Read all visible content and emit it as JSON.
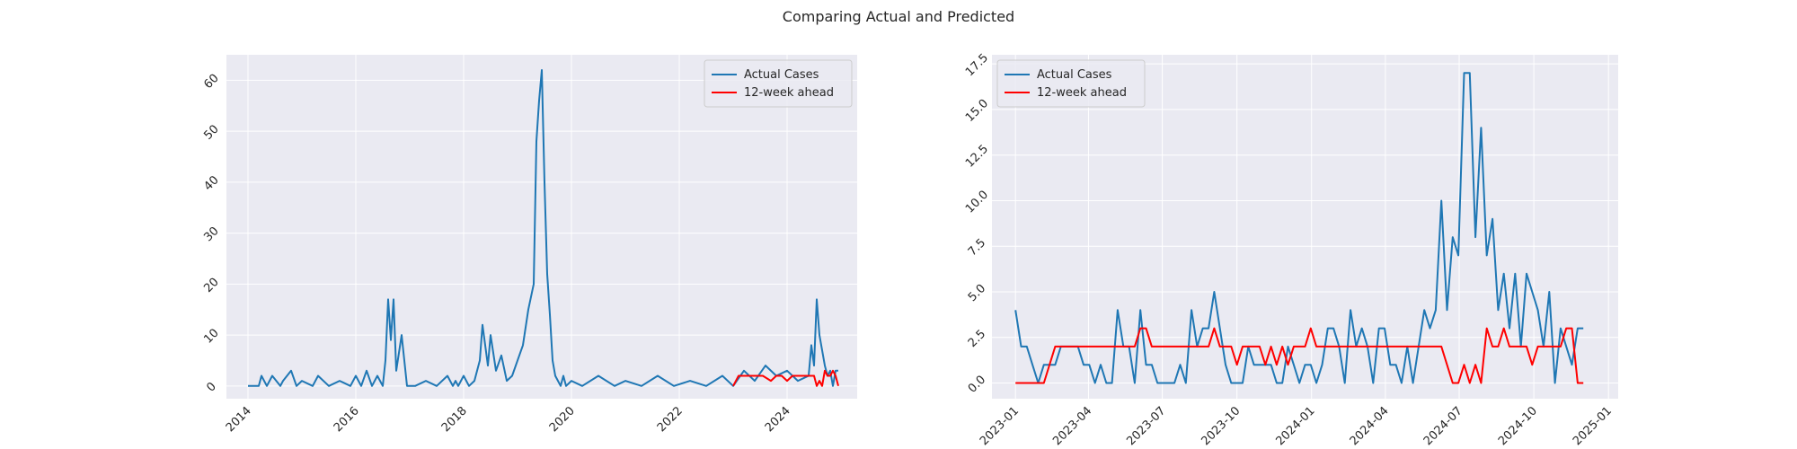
{
  "figure": {
    "suptitle": "Comparing Actual and Predicted"
  },
  "colors": {
    "background": "#eaeaf2",
    "grid": "#ffffff",
    "actual": "#1f77b4",
    "predicted": "#ff0000",
    "text": "#262626"
  },
  "chart_data": [
    {
      "type": "line",
      "legend": {
        "position": "upper-right",
        "entries": [
          "Actual Cases",
          "12-week ahead"
        ]
      },
      "grid": true,
      "xlim": [
        2013.6,
        2025.3
      ],
      "ylim": [
        -2.5,
        65
      ],
      "x_ticks": [
        2014,
        2016,
        2018,
        2020,
        2022,
        2024
      ],
      "x_tick_labels": [
        "2014",
        "2016",
        "2018",
        "2020",
        "2022",
        "2024"
      ],
      "y_ticks": [
        0,
        10,
        20,
        30,
        40,
        50,
        60
      ],
      "y_tick_labels": [
        "0",
        "10",
        "20",
        "30",
        "40",
        "50",
        "60"
      ],
      "series": [
        {
          "name": "Actual Cases",
          "color": "#1f77b4",
          "x": [
            2014.0,
            2014.2,
            2014.25,
            2014.35,
            2014.45,
            2014.6,
            2014.65,
            2014.8,
            2014.9,
            2015.0,
            2015.2,
            2015.3,
            2015.5,
            2015.7,
            2015.9,
            2016.0,
            2016.1,
            2016.2,
            2016.3,
            2016.4,
            2016.5,
            2016.55,
            2016.6,
            2016.65,
            2016.7,
            2016.75,
            2016.85,
            2016.95,
            2017.1,
            2017.3,
            2017.5,
            2017.7,
            2017.8,
            2017.85,
            2017.9,
            2018.0,
            2018.1,
            2018.2,
            2018.3,
            2018.35,
            2018.4,
            2018.45,
            2018.5,
            2018.6,
            2018.7,
            2018.8,
            2018.9,
            2019.0,
            2019.1,
            2019.2,
            2019.3,
            2019.35,
            2019.4,
            2019.45,
            2019.5,
            2019.55,
            2019.6,
            2019.65,
            2019.7,
            2019.75,
            2019.8,
            2019.85,
            2019.9,
            2020.0,
            2020.2,
            2020.5,
            2020.8,
            2021.0,
            2021.3,
            2021.6,
            2021.9,
            2022.2,
            2022.5,
            2022.8,
            2023.0,
            2023.2,
            2023.4,
            2023.6,
            2023.8,
            2024.0,
            2024.2,
            2024.4,
            2024.45,
            2024.5,
            2024.55,
            2024.6,
            2024.65,
            2024.7,
            2024.75,
            2024.8,
            2024.85,
            2024.9,
            2024.95
          ],
          "y": [
            0,
            0,
            2,
            0,
            2,
            0,
            1,
            3,
            0,
            1,
            0,
            2,
            0,
            1,
            0,
            2,
            0,
            3,
            0,
            2,
            0,
            5,
            17,
            9,
            17,
            3,
            10,
            0,
            0,
            1,
            0,
            2,
            0,
            1,
            0,
            2,
            0,
            1,
            5,
            12,
            8,
            4,
            10,
            3,
            6,
            1,
            2,
            5,
            8,
            15,
            20,
            48,
            56,
            62,
            40,
            22,
            14,
            5,
            2,
            1,
            0,
            2,
            0,
            1,
            0,
            2,
            0,
            1,
            0,
            2,
            0,
            1,
            0,
            2,
            0,
            3,
            1,
            4,
            2,
            3,
            1,
            2,
            8,
            4,
            17,
            10,
            7,
            4,
            2,
            3,
            0,
            3,
            3
          ]
        },
        {
          "name": "12-week ahead",
          "color": "#ff0000",
          "x": [
            2023.0,
            2023.1,
            2023.2,
            2023.35,
            2023.45,
            2023.55,
            2023.7,
            2023.8,
            2023.9,
            2024.0,
            2024.1,
            2024.2,
            2024.3,
            2024.4,
            2024.5,
            2024.55,
            2024.6,
            2024.65,
            2024.7,
            2024.75,
            2024.8,
            2024.85,
            2024.9,
            2024.95
          ],
          "y": [
            0,
            2,
            2,
            2,
            2,
            2,
            1,
            2,
            2,
            1,
            2,
            2,
            2,
            2,
            2,
            0,
            1,
            0,
            3,
            2,
            2,
            3,
            2,
            0
          ]
        }
      ]
    },
    {
      "type": "line",
      "legend": {
        "position": "upper-left",
        "entries": [
          "Actual Cases",
          "12-week ahead"
        ]
      },
      "grid": true,
      "xlim": [
        "2022-12-03",
        "2025-01-13"
      ],
      "ylim": [
        -0.86,
        18.0
      ],
      "x_ticks": [
        "2023-01-01",
        "2023-04-01",
        "2023-07-01",
        "2023-10-01",
        "2024-01-01",
        "2024-04-01",
        "2024-07-01",
        "2024-10-01",
        "2025-01-01"
      ],
      "x_tick_labels": [
        "2023-01",
        "2023-04",
        "2023-07",
        "2023-10",
        "2024-01",
        "2024-04",
        "2024-07",
        "2024-10",
        "2025-01"
      ],
      "y_ticks": [
        0,
        2.5,
        5,
        7.5,
        10,
        12.5,
        15,
        17.5
      ],
      "y_tick_labels": [
        "0.0",
        "2.5",
        "5.0",
        "7.5",
        "10.0",
        "12.5",
        "15.0",
        "17.5"
      ],
      "series": [
        {
          "name": "Actual Cases",
          "color": "#1f77b4",
          "x_start": "2023-01-01",
          "x_step_days": 7,
          "y": [
            4,
            2,
            2,
            1,
            0,
            1,
            1,
            1,
            2,
            2,
            2,
            2,
            1,
            1,
            0,
            1,
            0,
            0,
            4,
            2,
            2,
            0,
            4,
            1,
            1,
            0,
            0,
            0,
            0,
            1,
            0,
            4,
            2,
            3,
            3,
            5,
            3,
            1,
            0,
            0,
            0,
            2,
            1,
            1,
            1,
            1,
            0,
            0,
            2,
            1,
            0,
            1,
            1,
            0,
            1,
            3,
            3,
            2,
            0,
            4,
            2,
            3,
            2,
            0,
            3,
            3,
            1,
            1,
            0,
            2,
            0,
            2,
            4,
            3,
            4,
            10,
            4,
            8,
            7,
            17,
            17,
            8,
            14,
            7,
            9,
            4,
            6,
            3,
            6,
            2,
            6,
            5,
            4,
            2,
            5,
            0,
            3,
            2,
            1,
            3,
            3
          ]
        },
        {
          "name": "12-week ahead",
          "color": "#ff0000",
          "x_start": "2023-01-01",
          "x_step_days": 7,
          "y": [
            0,
            0,
            0,
            0,
            0,
            0,
            1,
            2,
            2,
            2,
            2,
            2,
            2,
            2,
            2,
            2,
            2,
            2,
            2,
            2,
            2,
            2,
            3,
            3,
            2,
            2,
            2,
            2,
            2,
            2,
            2,
            2,
            2,
            2,
            2,
            3,
            2,
            2,
            2,
            1,
            2,
            2,
            2,
            2,
            1,
            2,
            1,
            2,
            1,
            2,
            2,
            2,
            3,
            2,
            2,
            2,
            2,
            2,
            2,
            2,
            2,
            2,
            2,
            2,
            2,
            2,
            2,
            2,
            2,
            2,
            2,
            2,
            2,
            2,
            2,
            2,
            1,
            0,
            0,
            1,
            0,
            1,
            0,
            3,
            2,
            2,
            3,
            2,
            2,
            2,
            2,
            1,
            2,
            2,
            2,
            2,
            2,
            3,
            3,
            0,
            0
          ]
        }
      ]
    }
  ]
}
